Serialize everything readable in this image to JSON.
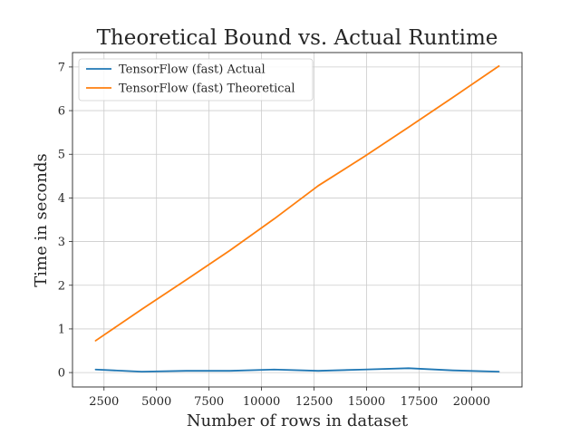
{
  "chart_data": {
    "type": "line",
    "title": "Theoretical Bound vs. Actual Runtime",
    "xlabel": "Number of rows in dataset",
    "ylabel": "Time in seconds",
    "xlim": [
      1000,
      22400
    ],
    "ylim": [
      -0.33,
      7.33
    ],
    "xticks": [
      2500,
      5000,
      7500,
      10000,
      12500,
      15000,
      17500,
      20000
    ],
    "xtick_labels": [
      "2500",
      "5000",
      "7500",
      "10000",
      "12500",
      "15000",
      "17500",
      "20000"
    ],
    "yticks": [
      0,
      1,
      2,
      3,
      4,
      5,
      6,
      7
    ],
    "ytick_labels": [
      "0",
      "1",
      "2",
      "3",
      "4",
      "5",
      "6",
      "7"
    ],
    "grid": true,
    "legend_position": "upper-left",
    "series": [
      {
        "name": "TensorFlow (fast) Actual",
        "color": "#1f77b4",
        "x": [
          2100,
          4300,
          6400,
          8500,
          10600,
          12700,
          14900,
          17000,
          19100,
          21300
        ],
        "y": [
          0.07,
          0.02,
          0.04,
          0.04,
          0.07,
          0.04,
          0.07,
          0.1,
          0.05,
          0.02
        ]
      },
      {
        "name": "TensorFlow (fast) Theoretical",
        "color": "#ff7f0e",
        "x": [
          2100,
          4300,
          6400,
          8500,
          10600,
          12700,
          14900,
          17000,
          19100,
          21300
        ],
        "y": [
          0.73,
          1.45,
          2.12,
          2.8,
          3.52,
          4.28,
          4.95,
          5.62,
          6.3,
          7.02
        ]
      }
    ]
  }
}
